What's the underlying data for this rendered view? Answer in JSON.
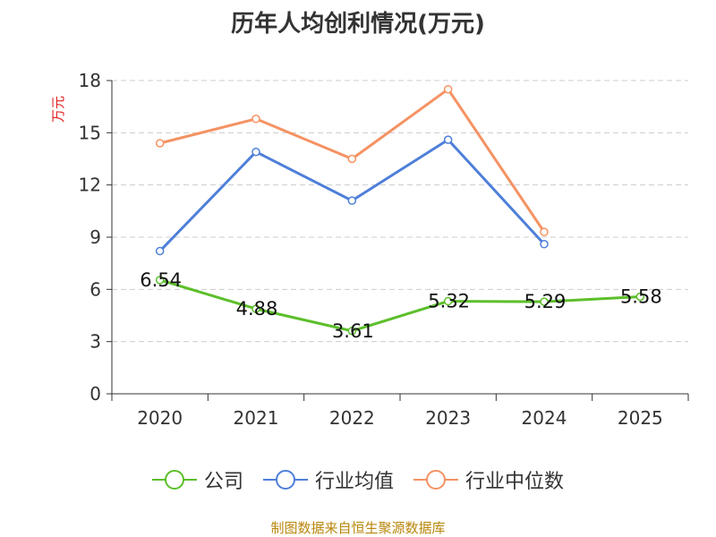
{
  "title": "历年人均创利情况(万元)",
  "footer": "制图数据来自恒生聚源数据库",
  "colors": {
    "company": "#5cbf2a",
    "industry_avg": "#4e7fd9",
    "industry_median": "#f59263",
    "grid": "#cccccc",
    "axis": "#333333",
    "ylabel": "#e02020"
  },
  "chart_data": {
    "type": "line",
    "title": "历年人均创利情况(万元)",
    "ylabel": "万元",
    "xlabel": "",
    "categories": [
      "2020",
      "2021",
      "2022",
      "2023",
      "2024",
      "2025"
    ],
    "ylim": [
      0,
      18
    ],
    "yticks": [
      "0",
      "3",
      "6",
      "9",
      "12",
      "15",
      "18"
    ],
    "grid": true,
    "legend_position": "bottom",
    "series": [
      {
        "name": "公司",
        "values": [
          6.54,
          4.88,
          3.61,
          5.32,
          5.29,
          5.58
        ],
        "labels": [
          "6.54",
          "4.88",
          "3.61",
          "5.32",
          "5.29",
          "5.58"
        ]
      },
      {
        "name": "行业均值",
        "values": [
          8.2,
          13.9,
          11.1,
          14.6,
          8.6,
          null
        ]
      },
      {
        "name": "行业中位数",
        "values": [
          14.4,
          15.8,
          13.5,
          17.5,
          9.3,
          null
        ]
      }
    ]
  }
}
